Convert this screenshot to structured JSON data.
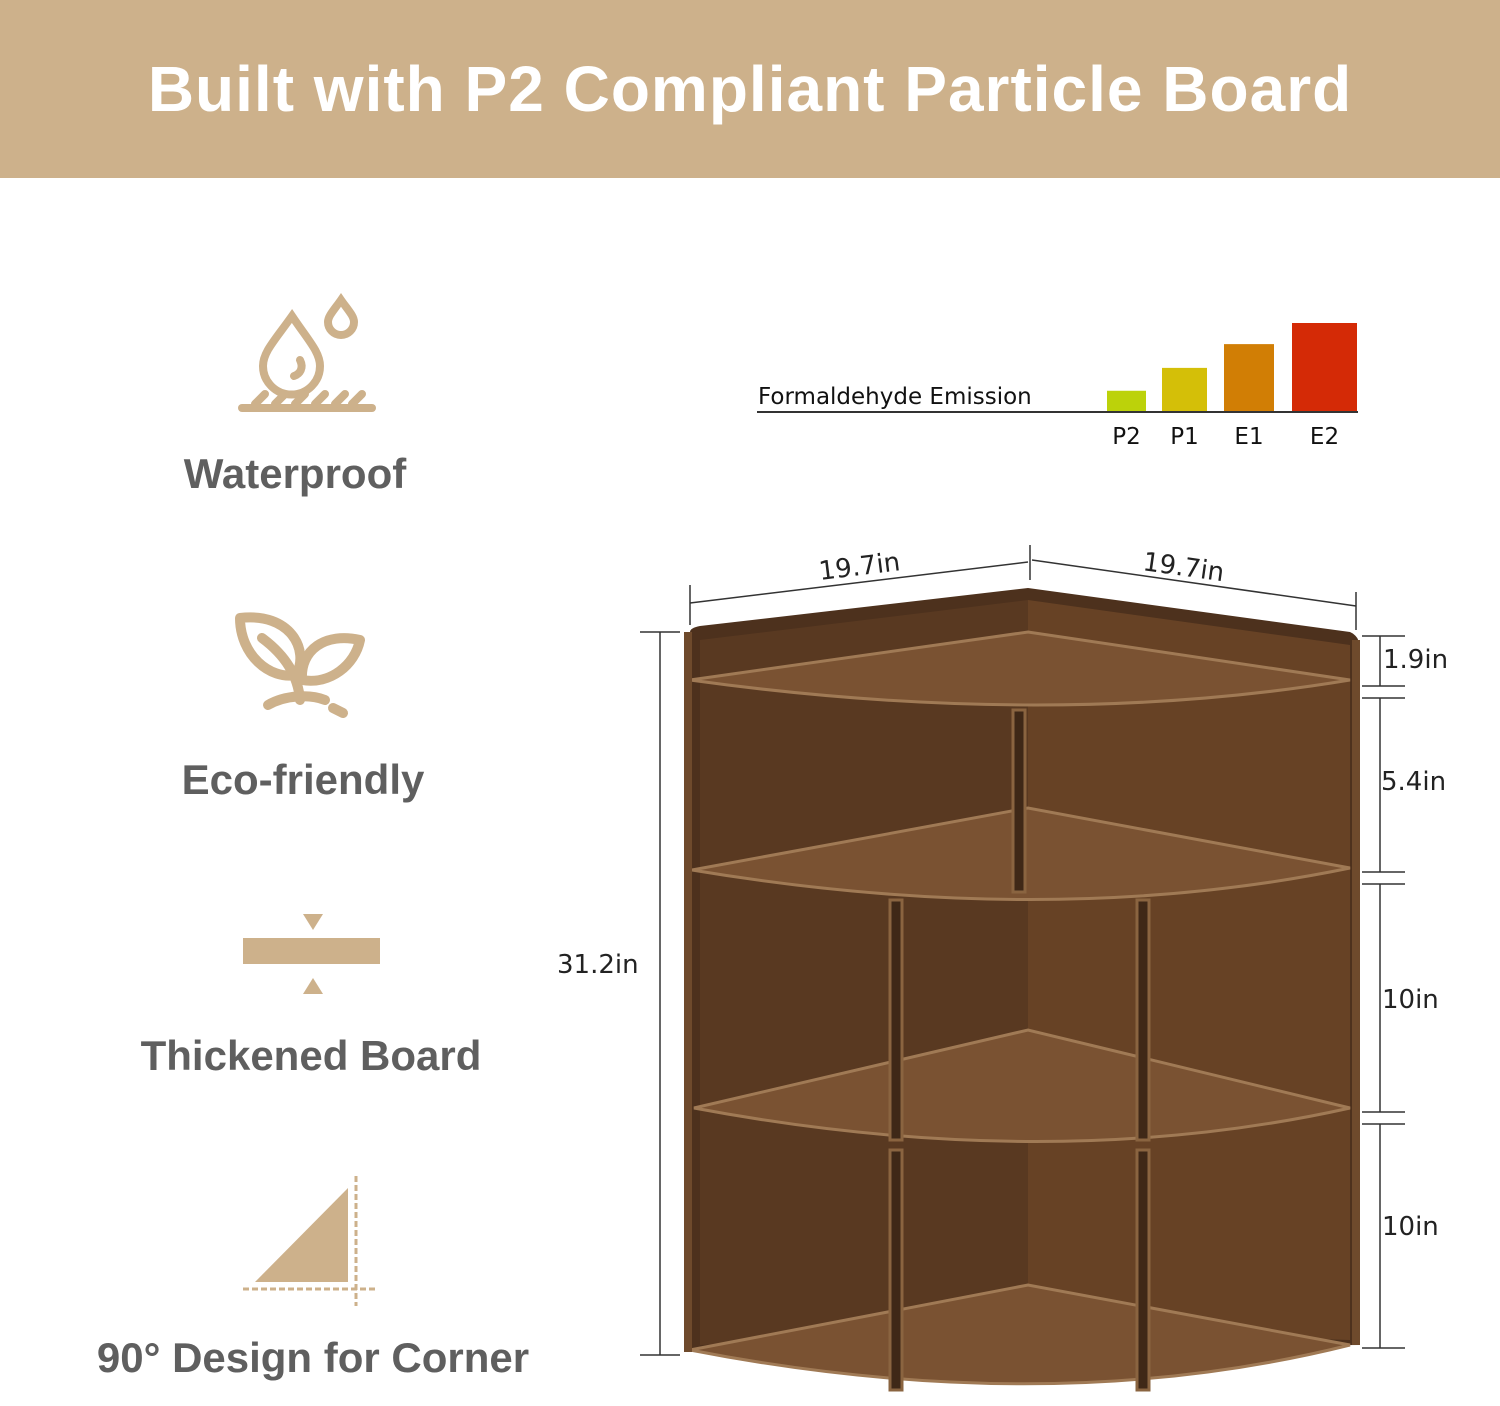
{
  "header": {
    "title": "Built with P2 Compliant Particle Board"
  },
  "features": [
    {
      "label": "Waterproof",
      "icon": "water-drop-icon"
    },
    {
      "label": "Eco-friendly",
      "icon": "sprout-icon"
    },
    {
      "label": "Thickened Board",
      "icon": "thick-board-icon"
    },
    {
      "label": "90° Design for Corner",
      "icon": "right-angle-icon"
    }
  ],
  "colors": {
    "header_bg": "#cdb18b",
    "icon": "#cdb18b",
    "feature_text": "#5f5f5f",
    "wood": "#5a3a22"
  },
  "chart_data": {
    "type": "bar",
    "title": "Formaldehyde Emission",
    "categories": [
      "P2",
      "P1",
      "E1",
      "E2"
    ],
    "values": [
      0.23,
      0.49,
      0.76,
      1.0
    ],
    "colors": [
      "#bcd20a",
      "#d4bf08",
      "#d17e05",
      "#d42a06"
    ],
    "grid": false
  },
  "dimensions": {
    "width_left": "19.7in",
    "width_right": "19.7in",
    "height_total": "31.2in",
    "rail": "1.9in",
    "tier_top": "5.4in",
    "tier_mid": "10in",
    "tier_bottom": "10in"
  }
}
